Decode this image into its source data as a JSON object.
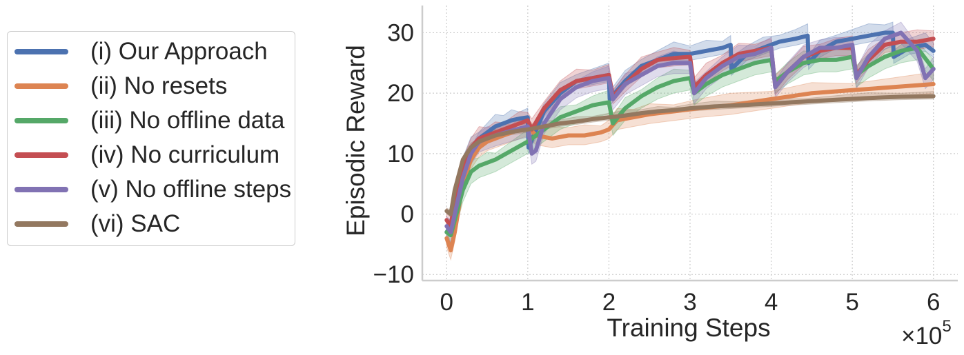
{
  "chart_data": {
    "type": "line",
    "xlabel": "Training Steps",
    "ylabel": "Episodic Reward",
    "x_multiplier_label": "×10",
    "x_multiplier_exp": "5",
    "xlim": [
      -0.3,
      6.3
    ],
    "ylim": [
      -11,
      34.5
    ],
    "xticks": [
      0,
      1,
      2,
      3,
      4,
      5,
      6
    ],
    "xtick_labels": [
      "0",
      "1",
      "2",
      "3",
      "4",
      "5",
      "6"
    ],
    "yticks": [
      -10,
      0,
      10,
      20,
      30
    ],
    "ytick_labels": [
      "−10",
      "0",
      "10",
      "20",
      "30"
    ],
    "grid": true,
    "legend_position": "left-outside",
    "series": [
      {
        "name": "(i) Our Approach",
        "color": "#4c72b0",
        "x": [
          0,
          0.05,
          0.1,
          0.2,
          0.3,
          0.4,
          0.5,
          0.6,
          0.7,
          0.8,
          0.9,
          1.0,
          1.01,
          1.2,
          1.4,
          1.6,
          1.8,
          2.0,
          2.01,
          2.2,
          2.4,
          2.6,
          2.8,
          3.0,
          3.2,
          3.4,
          3.5,
          3.51,
          3.7,
          3.9,
          4.1,
          4.3,
          4.45,
          4.46,
          4.6,
          4.8,
          5.0,
          5.2,
          5.4,
          5.5,
          5.51,
          5.7,
          5.9,
          6.0
        ],
        "y": [
          -3,
          -2,
          2,
          8,
          11,
          12.5,
          13.5,
          14.5,
          15,
          15.5,
          15.8,
          16,
          11,
          17,
          20,
          22,
          22.5,
          23,
          19,
          22,
          24.5,
          25.5,
          26.5,
          26.5,
          27,
          27.5,
          28,
          24,
          26.5,
          27.5,
          28.5,
          29,
          29.5,
          25,
          27,
          28.5,
          29,
          29.5,
          30,
          30,
          26,
          27.5,
          28,
          27
        ]
      },
      {
        "name": "(ii) No resets",
        "color": "#dd8452",
        "x": [
          0,
          0.05,
          0.1,
          0.2,
          0.3,
          0.4,
          0.5,
          0.6,
          0.7,
          0.8,
          0.9,
          1.0,
          1.1,
          1.3,
          1.5,
          1.7,
          1.9,
          2.0,
          2.1,
          2.3,
          2.5,
          2.8,
          3.1,
          3.5,
          4.0,
          4.5,
          5.0,
          5.5,
          6.0
        ],
        "y": [
          -4,
          -6,
          -3,
          5,
          9,
          11,
          12,
          12.5,
          13,
          13.5,
          14,
          14.5,
          13,
          12.5,
          13,
          13,
          13.5,
          14,
          15.5,
          16,
          16.5,
          17,
          17.5,
          18,
          19,
          20,
          20.5,
          21,
          21.5
        ]
      },
      {
        "name": "(iii) No offline data",
        "color": "#55a868",
        "x": [
          0,
          0.05,
          0.1,
          0.2,
          0.3,
          0.4,
          0.5,
          0.6,
          0.8,
          1.0,
          1.2,
          1.4,
          1.6,
          1.8,
          2.0,
          2.05,
          2.2,
          2.4,
          2.6,
          2.8,
          3.0,
          3.05,
          3.2,
          3.4,
          3.6,
          3.8,
          4.0,
          4.05,
          4.2,
          4.4,
          4.6,
          4.8,
          5.0,
          5.05,
          5.2,
          5.4,
          5.6,
          5.8,
          6.0
        ],
        "y": [
          -3,
          -3.5,
          -1,
          4,
          7,
          8,
          8.5,
          9,
          10.5,
          12,
          14,
          16,
          17,
          18,
          18.5,
          15,
          17.5,
          19.5,
          21,
          22,
          22.5,
          20,
          21.5,
          23,
          24,
          25,
          25.5,
          22,
          23.5,
          25,
          25.5,
          25.5,
          26,
          23,
          24.5,
          26,
          27,
          27.5,
          24
        ]
      },
      {
        "name": "(iv) No curriculum",
        "color": "#c44e52",
        "x": [
          0,
          0.05,
          0.1,
          0.2,
          0.3,
          0.4,
          0.5,
          0.6,
          0.7,
          0.8,
          0.9,
          1.0,
          1.05,
          1.2,
          1.4,
          1.6,
          1.8,
          2.0,
          2.05,
          2.2,
          2.4,
          2.6,
          2.8,
          3.0,
          3.05,
          3.2,
          3.4,
          3.6,
          3.8,
          4.0,
          4.05,
          4.2,
          4.4,
          4.6,
          4.8,
          5.0,
          5.05,
          5.2,
          5.4,
          5.6,
          5.8,
          6.0
        ],
        "y": [
          -1,
          -2,
          2,
          8,
          11,
          12.5,
          13,
          13.5,
          14,
          14.5,
          15,
          15.5,
          14,
          17.5,
          20.5,
          22,
          22.5,
          23,
          19.5,
          21.5,
          24,
          25.5,
          25.8,
          26,
          21,
          23,
          25,
          26.5,
          27,
          27.5,
          21,
          23.5,
          26,
          27,
          27.5,
          27.5,
          23,
          25.5,
          28,
          28.5,
          28.5,
          29
        ]
      },
      {
        "name": "(v) No offline steps",
        "color": "#8172b3",
        "x": [
          0,
          0.05,
          0.1,
          0.2,
          0.3,
          0.4,
          0.5,
          0.6,
          0.8,
          1.0,
          1.05,
          1.1,
          1.2,
          1.4,
          1.6,
          1.8,
          2.0,
          2.05,
          2.2,
          2.4,
          2.6,
          2.8,
          3.0,
          3.05,
          3.2,
          3.4,
          3.6,
          3.8,
          4.0,
          4.05,
          4.2,
          4.4,
          4.6,
          4.8,
          5.0,
          5.05,
          5.2,
          5.4,
          5.6,
          5.8,
          5.9,
          6.0
        ],
        "y": [
          -2,
          -3,
          0,
          6,
          10,
          12,
          12.5,
          13,
          13.8,
          14.5,
          10,
          10.5,
          15,
          19,
          21,
          22,
          22.5,
          19,
          21.5,
          23,
          24.5,
          25,
          25,
          20,
          22.5,
          24.5,
          26,
          26.5,
          27.5,
          21,
          23.5,
          26,
          27.5,
          27.5,
          28,
          22.5,
          26,
          29,
          30,
          27,
          22.5,
          24
        ]
      },
      {
        "name": "(vi) SAC",
        "color": "#937860",
        "x": [
          0,
          0.05,
          0.1,
          0.2,
          0.3,
          0.4,
          0.5,
          0.6,
          0.7,
          0.8,
          0.9,
          1.0,
          1.2,
          1.4,
          1.6,
          1.8,
          2.0,
          2.2,
          2.4,
          2.6,
          2.8,
          3.0,
          3.3,
          3.6,
          4.0,
          4.4,
          4.8,
          5.2,
          5.6,
          6.0
        ],
        "y": [
          0.5,
          0,
          4,
          9,
          11,
          12,
          12.5,
          13,
          13.3,
          13.6,
          13.8,
          14,
          14.5,
          15,
          15.3,
          15.7,
          16,
          16.3,
          16.7,
          17,
          17.2,
          17.5,
          17.8,
          18,
          18.3,
          18.6,
          18.9,
          19.2,
          19.4,
          19.5
        ]
      }
    ]
  }
}
